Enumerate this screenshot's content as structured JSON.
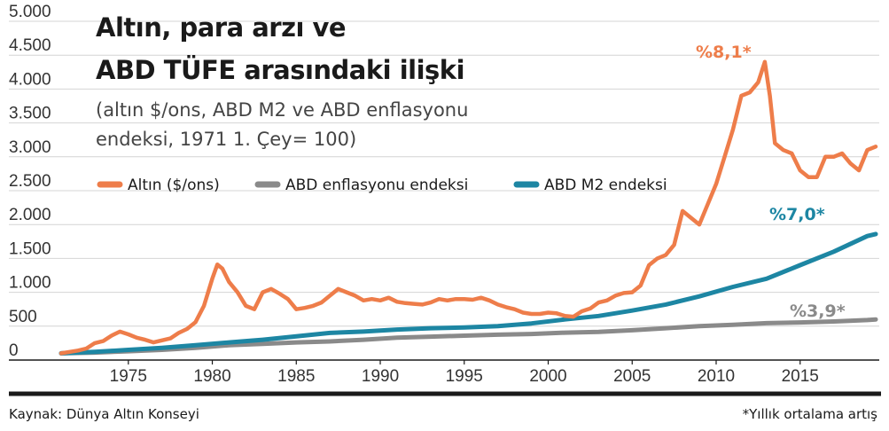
{
  "chart_data": {
    "type": "line",
    "title_lines": [
      "Altın, para arzı ve",
      "ABD TÜFE arasındaki ilişki"
    ],
    "subtitle_lines": [
      "(altın $/ons, ABD M2 ve ABD enflasyonu",
      "endeksi, 1971 1. Çey= 100)"
    ],
    "ylim": [
      0,
      5000
    ],
    "xlim": [
      1971,
      2019.5
    ],
    "y_ticks": [
      0,
      500,
      1000,
      1500,
      2000,
      2500,
      3000,
      3500,
      4000,
      4500,
      5000
    ],
    "y_tick_labels": [
      "0",
      "500",
      "1.000",
      "1.500",
      "2.000",
      "2.500",
      "3.000",
      "3.500",
      "4.000",
      "4.500",
      "5.000"
    ],
    "x_ticks": [
      1975,
      1980,
      1985,
      1990,
      1995,
      2000,
      2005,
      2010,
      2015
    ],
    "x_tick_labels": [
      "1975",
      "1980",
      "1985",
      "1990",
      "1995",
      "2000",
      "2005",
      "2010",
      "2015"
    ],
    "grid": true,
    "legend_position": "top-left",
    "series": [
      {
        "name": "Altın ($/ons)",
        "color": "#ee7d4a",
        "annotation": "%8,1*",
        "points": [
          [
            1971,
            100
          ],
          [
            1972,
            140
          ],
          [
            1972.5,
            170
          ],
          [
            1973,
            250
          ],
          [
            1973.5,
            280
          ],
          [
            1974,
            360
          ],
          [
            1974.5,
            420
          ],
          [
            1975,
            380
          ],
          [
            1975.5,
            330
          ],
          [
            1976,
            300
          ],
          [
            1976.5,
            260
          ],
          [
            1977,
            290
          ],
          [
            1977.5,
            320
          ],
          [
            1978,
            400
          ],
          [
            1978.5,
            460
          ],
          [
            1979,
            560
          ],
          [
            1979.5,
            800
          ],
          [
            1980,
            1200
          ],
          [
            1980.3,
            1410
          ],
          [
            1980.6,
            1350
          ],
          [
            1981,
            1150
          ],
          [
            1981.5,
            1000
          ],
          [
            1982,
            800
          ],
          [
            1982.5,
            750
          ],
          [
            1983,
            1000
          ],
          [
            1983.5,
            1050
          ],
          [
            1984,
            980
          ],
          [
            1984.5,
            900
          ],
          [
            1985,
            750
          ],
          [
            1985.5,
            770
          ],
          [
            1986,
            800
          ],
          [
            1986.5,
            850
          ],
          [
            1987,
            950
          ],
          [
            1987.5,
            1050
          ],
          [
            1988,
            1000
          ],
          [
            1988.5,
            950
          ],
          [
            1989,
            880
          ],
          [
            1989.5,
            900
          ],
          [
            1990,
            880
          ],
          [
            1990.5,
            920
          ],
          [
            1991,
            860
          ],
          [
            1991.5,
            840
          ],
          [
            1992,
            830
          ],
          [
            1992.5,
            820
          ],
          [
            1993,
            850
          ],
          [
            1993.5,
            900
          ],
          [
            1994,
            880
          ],
          [
            1994.5,
            900
          ],
          [
            1995,
            900
          ],
          [
            1995.5,
            890
          ],
          [
            1996,
            920
          ],
          [
            1996.5,
            880
          ],
          [
            1997,
            820
          ],
          [
            1997.5,
            780
          ],
          [
            1998,
            750
          ],
          [
            1998.5,
            700
          ],
          [
            1999,
            680
          ],
          [
            1999.5,
            680
          ],
          [
            2000,
            700
          ],
          [
            2000.5,
            690
          ],
          [
            2001,
            650
          ],
          [
            2001.5,
            640
          ],
          [
            2002,
            720
          ],
          [
            2002.5,
            760
          ],
          [
            2003,
            850
          ],
          [
            2003.5,
            880
          ],
          [
            2004,
            950
          ],
          [
            2004.5,
            990
          ],
          [
            2005,
            1000
          ],
          [
            2005.5,
            1100
          ],
          [
            2006,
            1400
          ],
          [
            2006.5,
            1500
          ],
          [
            2007,
            1550
          ],
          [
            2007.5,
            1700
          ],
          [
            2008,
            2200
          ],
          [
            2008.5,
            2100
          ],
          [
            2009,
            2000
          ],
          [
            2009.5,
            2300
          ],
          [
            2010,
            2600
          ],
          [
            2010.5,
            3000
          ],
          [
            2011,
            3400
          ],
          [
            2011.5,
            3900
          ],
          [
            2012,
            3950
          ],
          [
            2012.5,
            4100
          ],
          [
            2012.9,
            4400
          ],
          [
            2013.2,
            3900
          ],
          [
            2013.5,
            3200
          ],
          [
            2014,
            3100
          ],
          [
            2014.5,
            3050
          ],
          [
            2015,
            2800
          ],
          [
            2015.5,
            2700
          ],
          [
            2016,
            2700
          ],
          [
            2016.5,
            3000
          ],
          [
            2017,
            3000
          ],
          [
            2017.5,
            3050
          ],
          [
            2018,
            2900
          ],
          [
            2018.5,
            2800
          ],
          [
            2019,
            3100
          ],
          [
            2019.5,
            3150
          ]
        ]
      },
      {
        "name": "ABD enflasyonu endeksi",
        "color": "#8a8a8a",
        "annotation": "%3,9*",
        "points": [
          [
            1971,
            100
          ],
          [
            1973,
            110
          ],
          [
            1975,
            130
          ],
          [
            1977,
            150
          ],
          [
            1979,
            180
          ],
          [
            1981,
            220
          ],
          [
            1983,
            240
          ],
          [
            1985,
            260
          ],
          [
            1987,
            275
          ],
          [
            1989,
            300
          ],
          [
            1991,
            330
          ],
          [
            1993,
            345
          ],
          [
            1995,
            360
          ],
          [
            1997,
            375
          ],
          [
            1999,
            385
          ],
          [
            2001,
            405
          ],
          [
            2003,
            415
          ],
          [
            2005,
            440
          ],
          [
            2007,
            470
          ],
          [
            2009,
            500
          ],
          [
            2011,
            520
          ],
          [
            2013,
            545
          ],
          [
            2015,
            555
          ],
          [
            2017,
            570
          ],
          [
            2019,
            590
          ],
          [
            2019.5,
            600
          ]
        ]
      },
      {
        "name": "ABD M2 endeksi",
        "color": "#1d86a3",
        "annotation": "%7,0*",
        "points": [
          [
            1971,
            100
          ],
          [
            1973,
            120
          ],
          [
            1975,
            150
          ],
          [
            1977,
            180
          ],
          [
            1979,
            220
          ],
          [
            1981,
            260
          ],
          [
            1983,
            300
          ],
          [
            1985,
            350
          ],
          [
            1987,
            400
          ],
          [
            1989,
            420
          ],
          [
            1991,
            450
          ],
          [
            1993,
            470
          ],
          [
            1995,
            480
          ],
          [
            1997,
            500
          ],
          [
            1999,
            540
          ],
          [
            2001,
            600
          ],
          [
            2003,
            650
          ],
          [
            2005,
            730
          ],
          [
            2007,
            820
          ],
          [
            2009,
            940
          ],
          [
            2011,
            1080
          ],
          [
            2013,
            1200
          ],
          [
            2015,
            1400
          ],
          [
            2017,
            1600
          ],
          [
            2019,
            1830
          ],
          [
            2019.5,
            1860
          ]
        ]
      }
    ]
  },
  "footer": {
    "source": "Kaynak: Dünya Altın Konseyi",
    "note": "*Yıllık ortalama artış"
  }
}
